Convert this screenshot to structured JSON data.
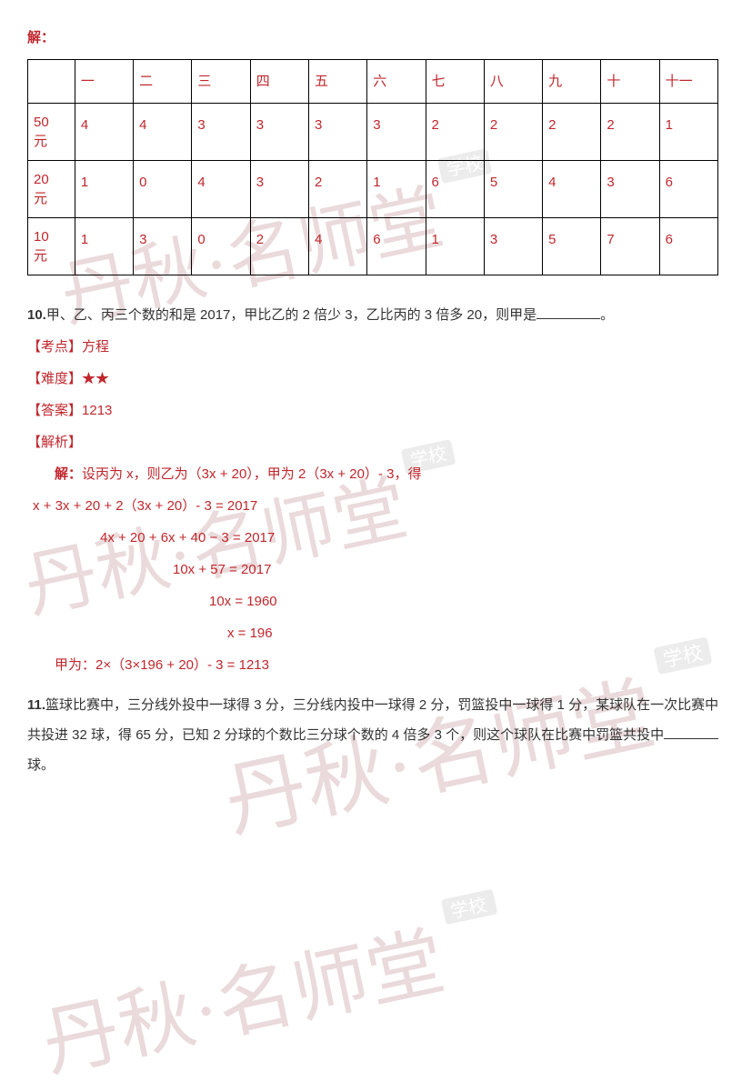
{
  "solution_header": "解：",
  "table": {
    "header_label": "",
    "cols": [
      "一",
      "二",
      "三",
      "四",
      "五",
      "六",
      "七",
      "八",
      "九",
      "十",
      "十一"
    ],
    "rows": [
      {
        "label": "50元",
        "vals": [
          "4",
          "4",
          "3",
          "3",
          "3",
          "3",
          "2",
          "2",
          "2",
          "2",
          "1"
        ]
      },
      {
        "label": "20元",
        "vals": [
          "1",
          "0",
          "4",
          "3",
          "2",
          "1",
          "6",
          "5",
          "4",
          "3",
          "6"
        ]
      },
      {
        "label": "10元",
        "vals": [
          "1",
          "3",
          "0",
          "2",
          "4",
          "6",
          "1",
          "3",
          "5",
          "7",
          "6"
        ]
      }
    ]
  },
  "q10": {
    "num": "10.",
    "text_a": "甲、乙、丙三个数的和是 2017，甲比乙的 2 倍少 3，乙比丙的 3 倍多 20，则甲是",
    "text_b": "。",
    "kaodian_label": "【考点】",
    "kaodian": "方程",
    "nandu_label": "【难度】",
    "nandu": "★★",
    "daan_label": "【答案】",
    "daan": "1213",
    "jiexi_label": "【解析】",
    "sol_header": "解：",
    "sol_line0": "设丙为 x，则乙为（3x + 20），甲为 2（3x + 20）- 3，得",
    "sol_line1": "x + 3x + 20 + 2（3x + 20）- 3 = 2017",
    "sol_line2": "4x + 20 + 6x + 40 − 3 = 2017",
    "sol_line3": "10x + 57 = 2017",
    "sol_line4": "10x = 1960",
    "sol_line5": "x = 196",
    "sol_result": "甲为：2×（3×196 + 20）- 3 = 1213"
  },
  "q11": {
    "num": "11.",
    "text_a": "篮球比赛中，三分线外投中一球得 3 分，三分线内投中一球得 2 分，罚篮投中一球得 1 分，某球队在一次比赛中共投进 32 球，得 65 分，已知 2 分球的个数比三分球个数的 4 倍多 3 个，则这个球队在比赛中罚篮共投中",
    "text_b": "球。"
  },
  "watermarks": {
    "main": "丹秋·名师堂",
    "badge": "学校",
    "color_main": "#b07074",
    "color_badge_fill": "#b8b8b8",
    "color_badge_text": "#ffffff"
  }
}
